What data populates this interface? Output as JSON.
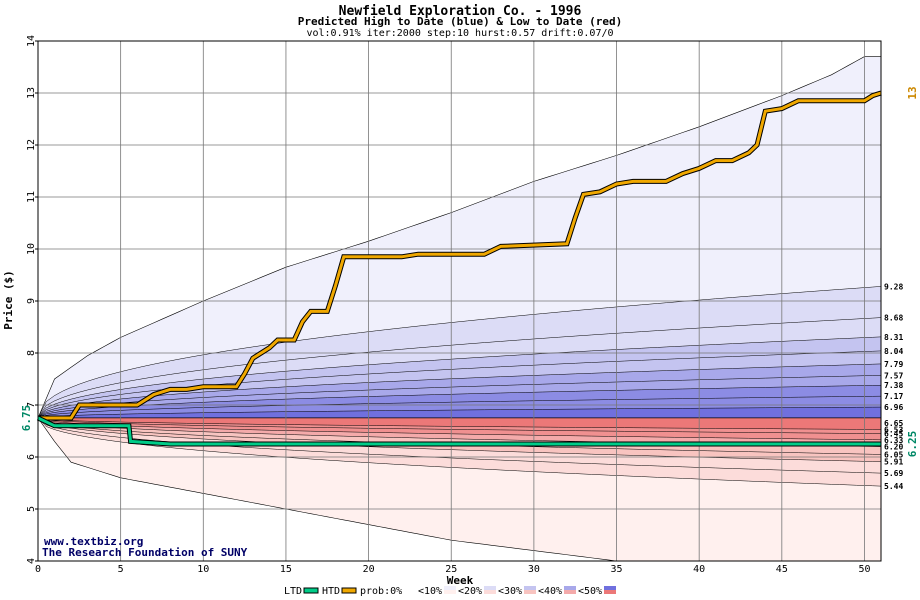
{
  "chart_data": {
    "type": "area",
    "title": "Newfield Exploration Co. - 1996",
    "subtitle": "Predicted High to Date (blue) &  Low to Date (red)",
    "params": "vol:0.91% iter:2000 step:10 hurst:0.57 drift:0.07/0",
    "xlabel": "Week",
    "ylabel": "Price ($)",
    "xlim": [
      0,
      51
    ],
    "ylim": [
      4,
      14
    ],
    "xticks": [
      "0",
      "5",
      "10",
      "15",
      "20",
      "25",
      "30",
      "35",
      "40",
      "45",
      "50"
    ],
    "yticks": [
      "4",
      "5",
      "6",
      "7",
      "8",
      "9",
      "10",
      "11",
      "12",
      "13",
      "14"
    ],
    "grid": true,
    "start_label": "6.75",
    "start_price": 6.75,
    "end_label_high": "13",
    "end_label_low": "6.25",
    "outer_envelope": {
      "upper": [
        [
          0,
          6.75
        ],
        [
          1,
          7.5
        ],
        [
          3,
          7.95
        ],
        [
          5,
          8.3
        ],
        [
          10,
          9.0
        ],
        [
          15,
          9.65
        ],
        [
          20,
          10.15
        ],
        [
          25,
          10.7
        ],
        [
          30,
          11.3
        ],
        [
          35,
          11.8
        ],
        [
          40,
          12.35
        ],
        [
          45,
          12.95
        ],
        [
          48,
          13.35
        ],
        [
          50,
          13.7
        ],
        [
          51,
          13.7
        ]
      ],
      "lower": [
        [
          0,
          6.75
        ],
        [
          1,
          6.3
        ],
        [
          2,
          5.9
        ],
        [
          5,
          5.6
        ],
        [
          10,
          5.3
        ],
        [
          15,
          5.0
        ],
        [
          20,
          4.7
        ],
        [
          25,
          4.4
        ],
        [
          30,
          4.2
        ],
        [
          35,
          4.0
        ],
        [
          35.1,
          4.0
        ]
      ]
    },
    "band_colors": {
      "upper": [
        "#f0f0fc",
        "#dcdcf6",
        "#c4c4f0",
        "#a8a8ea",
        "#8c8ce4",
        "#7070de"
      ],
      "lower": [
        "#fff0ee",
        "#fcdcda",
        "#f8c4c0",
        "#f4aaaa",
        "#f09090",
        "#ec7878"
      ]
    },
    "upper_band_end_labels": [
      "9.28",
      "8.68",
      "8.31",
      "8.04",
      "7.79",
      "7.57",
      "7.38",
      "7.17",
      "6.96",
      "6.65"
    ],
    "lower_band_end_labels": [
      "6.53",
      "6.45",
      "6.33",
      "6.20",
      "6.05",
      "5.91",
      "5.69",
      "5.44"
    ],
    "upper_band_ends": [
      9.28,
      8.68,
      8.31,
      8.04,
      7.79,
      7.57,
      7.38,
      7.17,
      6.96,
      6.65
    ],
    "lower_band_ends": [
      6.53,
      6.45,
      6.33,
      6.2,
      6.05,
      5.91,
      5.69,
      5.44
    ],
    "series": [
      {
        "name": "HTD",
        "color": "#f0a800",
        "points": [
          [
            0,
            6.75
          ],
          [
            2,
            6.75
          ],
          [
            2.5,
            7.0
          ],
          [
            6,
            7.0
          ],
          [
            7,
            7.2
          ],
          [
            8,
            7.3
          ],
          [
            9,
            7.3
          ],
          [
            10,
            7.35
          ],
          [
            12,
            7.35
          ],
          [
            12.5,
            7.6
          ],
          [
            13,
            7.9
          ],
          [
            14,
            8.1
          ],
          [
            14.5,
            8.25
          ],
          [
            15.5,
            8.25
          ],
          [
            16,
            8.6
          ],
          [
            16.5,
            8.8
          ],
          [
            17.5,
            8.8
          ],
          [
            18,
            9.3
          ],
          [
            18.5,
            9.85
          ],
          [
            22,
            9.85
          ],
          [
            23,
            9.9
          ],
          [
            27,
            9.9
          ],
          [
            28,
            10.05
          ],
          [
            32,
            10.1
          ],
          [
            32.5,
            10.6
          ],
          [
            33,
            11.05
          ],
          [
            34,
            11.1
          ],
          [
            35,
            11.25
          ],
          [
            36,
            11.3
          ],
          [
            38,
            11.3
          ],
          [
            39,
            11.45
          ],
          [
            40,
            11.55
          ],
          [
            41,
            11.7
          ],
          [
            42,
            11.7
          ],
          [
            43,
            11.85
          ],
          [
            43.5,
            12.0
          ],
          [
            44,
            12.65
          ],
          [
            45,
            12.7
          ],
          [
            46,
            12.85
          ],
          [
            50,
            12.85
          ],
          [
            50.5,
            12.95
          ],
          [
            51,
            13.0
          ]
        ]
      },
      {
        "name": "LTD",
        "color": "#00cc88",
        "points": [
          [
            0,
            6.75
          ],
          [
            1,
            6.6
          ],
          [
            5.5,
            6.6
          ],
          [
            5.6,
            6.3
          ],
          [
            8,
            6.25
          ],
          [
            51,
            6.25
          ]
        ]
      }
    ],
    "legend": {
      "items": [
        "LTD",
        "HTD",
        "prob:0%",
        "<10%",
        "<20%",
        "<30%",
        "<40%",
        "<50%"
      ],
      "colors": {
        "LTD": "#00cc88",
        "HTD": "#f0a800"
      }
    },
    "credit_lines": [
      "www.textbiz.org",
      "The Research Foundation of SUNY"
    ]
  }
}
